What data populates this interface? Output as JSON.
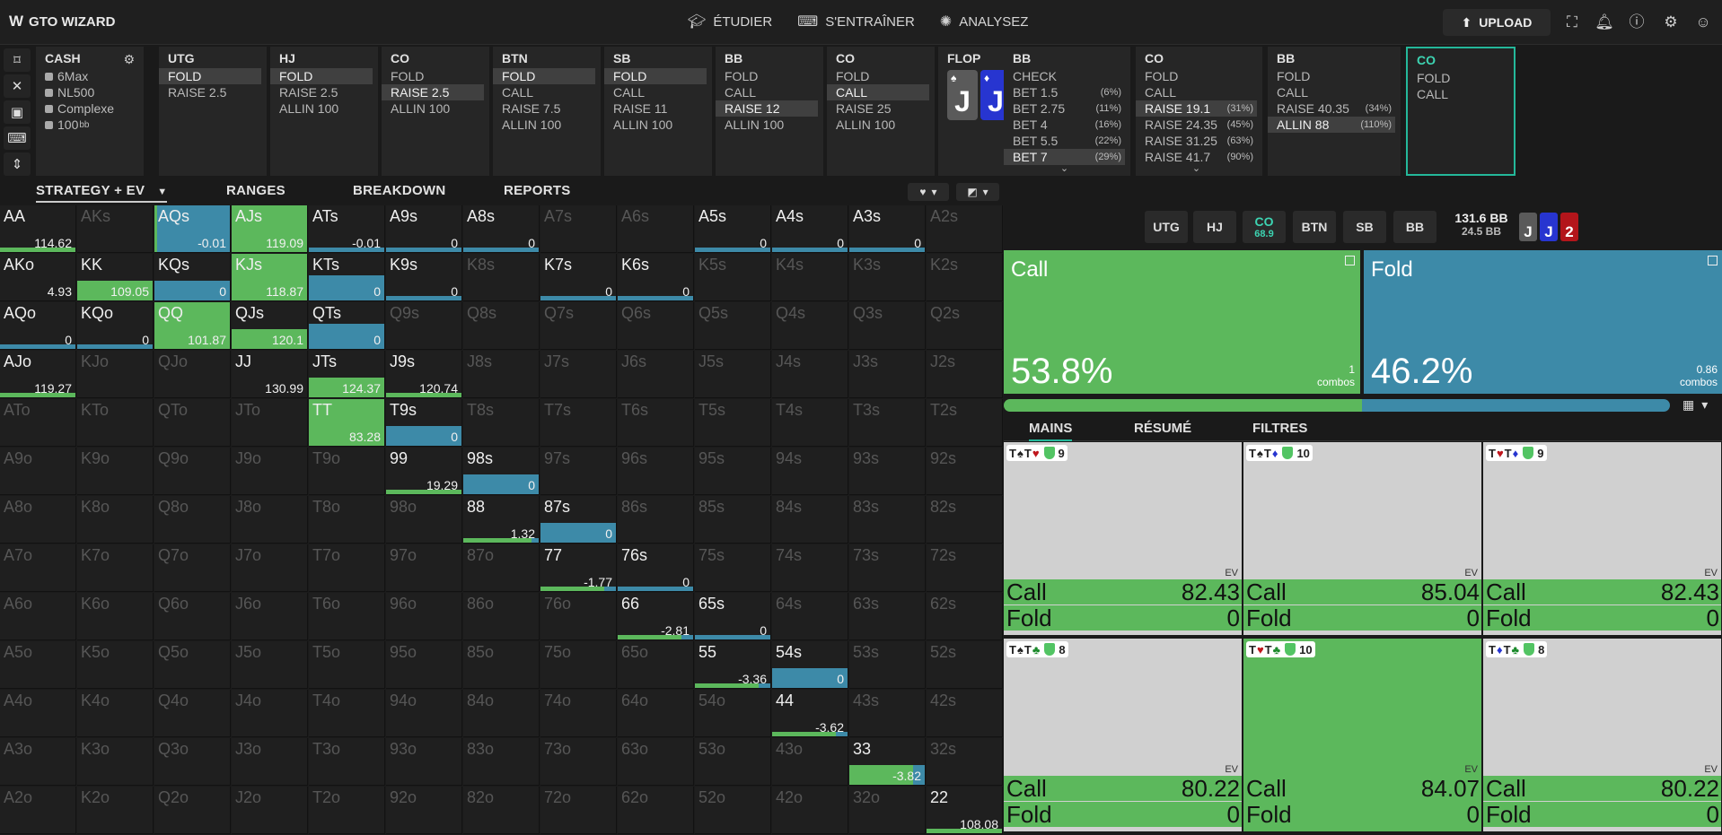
{
  "app": {
    "logo": "GTO WIZARD"
  },
  "nav": [
    {
      "label": "ÉTUDIER",
      "icon": "graduation-cap-icon"
    },
    {
      "label": "S'ENTRAÎNER",
      "icon": "gamepad-icon"
    },
    {
      "label": "ANALYSEZ",
      "icon": "lightbulb-icon"
    }
  ],
  "upload_label": "UPLOAD",
  "game": {
    "title": "CASH",
    "rows": [
      "6Max",
      "NL500",
      "Complexe",
      "100"
    ],
    "stack_unit": "bb"
  },
  "panels": [
    {
      "pos": "UTG",
      "opts": [
        "FOLD",
        "RAISE 2.5"
      ],
      "sel": 0
    },
    {
      "pos": "HJ",
      "opts": [
        "FOLD",
        "RAISE 2.5",
        "ALLIN 100"
      ],
      "sel": 0
    },
    {
      "pos": "CO",
      "opts": [
        "FOLD",
        "RAISE 2.5",
        "ALLIN 100"
      ],
      "sel": 1
    },
    {
      "pos": "BTN",
      "opts": [
        "FOLD",
        "CALL",
        "RAISE 7.5",
        "ALLIN 100"
      ],
      "sel": 0
    },
    {
      "pos": "SB",
      "opts": [
        "FOLD",
        "CALL",
        "RAISE 11",
        "ALLIN 100"
      ],
      "sel": 0
    },
    {
      "pos": "BB",
      "opts": [
        "FOLD",
        "CALL",
        "RAISE 12",
        "ALLIN 100"
      ],
      "sel": 2
    },
    {
      "pos": "CO",
      "opts": [
        "FOLD",
        "CALL",
        "RAISE 25",
        "ALLIN 100"
      ],
      "sel": 1
    }
  ],
  "flop": {
    "label": "FLOP",
    "pot": "24.5",
    "cards": [
      {
        "rank": "J",
        "suit": "♠",
        "color": "#5a5a5a"
      },
      {
        "rank": "J",
        "suit": "♦",
        "color": "#2735d0"
      },
      {
        "rank": "2",
        "suit": "♥",
        "color": "#b3151b"
      }
    ]
  },
  "postflop_panels": [
    {
      "pos": "BB",
      "opts": [
        {
          "l": "CHECK",
          "p": ""
        },
        {
          "l": "BET 1.5",
          "p": "(6%)"
        },
        {
          "l": "BET 2.75",
          "p": "(11%)"
        },
        {
          "l": "BET 4",
          "p": "(16%)"
        },
        {
          "l": "BET 5.5",
          "p": "(22%)"
        },
        {
          "l": "BET 7",
          "p": "(29%)"
        }
      ],
      "sel": 5,
      "more": true
    },
    {
      "pos": "CO",
      "opts": [
        {
          "l": "FOLD",
          "p": ""
        },
        {
          "l": "CALL",
          "p": ""
        },
        {
          "l": "RAISE 19.1",
          "p": "(31%)"
        },
        {
          "l": "RAISE 24.35",
          "p": "(45%)"
        },
        {
          "l": "RAISE 31.25",
          "p": "(63%)"
        },
        {
          "l": "RAISE 41.7",
          "p": "(90%)"
        }
      ],
      "sel": 2,
      "more": true
    },
    {
      "pos": "BB",
      "opts": [
        {
          "l": "FOLD",
          "p": ""
        },
        {
          "l": "CALL",
          "p": ""
        },
        {
          "l": "RAISE 40.35",
          "p": "(34%)"
        },
        {
          "l": "ALLIN 88",
          "p": "(110%)"
        }
      ],
      "sel": 3,
      "more": false
    },
    {
      "pos": "CO",
      "opts": [
        {
          "l": "FOLD",
          "p": ""
        },
        {
          "l": "CALL",
          "p": ""
        }
      ],
      "sel": -1,
      "more": false
    }
  ],
  "tabs": [
    "STRATEGY + EV",
    "RANGES",
    "BREAKDOWN",
    "REPORTS"
  ],
  "matrix": {
    "ranks": [
      "A",
      "K",
      "Q",
      "J",
      "T",
      "9",
      "8",
      "7",
      "6",
      "5",
      "4",
      "3",
      "2"
    ],
    "colors": {
      "call": "#5cb85c",
      "fold": "#3d8aa8"
    },
    "cells": {
      "AA": {
        "ev": "114.62",
        "call": 0,
        "fold": 0,
        "bar": [
          1,
          0
        ]
      },
      "AQs": {
        "ev": "-0.01",
        "call": 0.04,
        "fold": 0.96
      },
      "AJs": {
        "ev": "119.09",
        "call": 1,
        "fold": 0
      },
      "ATs": {
        "ev": "-0.01",
        "call": 0,
        "fold": 0,
        "bar": [
          0,
          1
        ]
      },
      "A9s": {
        "ev": "0",
        "call": 0,
        "fold": 0,
        "bar": [
          0,
          1
        ]
      },
      "A8s": {
        "ev": "0",
        "call": 0,
        "fold": 0,
        "bar": [
          0,
          1
        ]
      },
      "A5s": {
        "ev": "0",
        "call": 0,
        "fold": 0,
        "bar": [
          0,
          1
        ]
      },
      "A4s": {
        "ev": "0",
        "call": 0,
        "fold": 0,
        "bar": [
          0,
          1
        ]
      },
      "A3s": {
        "ev": "0",
        "call": 0,
        "fold": 0,
        "bar": [
          0,
          1
        ]
      },
      "AKo": {
        "ev": "4.93",
        "call": 0,
        "fold": 0
      },
      "KK": {
        "ev": "109.05",
        "call": 0,
        "fold": 0,
        "bar": [
          1,
          0
        ],
        "tall": true
      },
      "KQs": {
        "ev": "0",
        "call": 0,
        "fold": 0,
        "bar": [
          0,
          1
        ],
        "tall": true
      },
      "KJs": {
        "ev": "118.87",
        "call": 1,
        "fold": 0
      },
      "KTs": {
        "ev": "0",
        "call": 0,
        "fold": 1
      },
      "K9s": {
        "ev": "0",
        "call": 0,
        "fold": 0,
        "bar": [
          0,
          1
        ]
      },
      "K7s": {
        "ev": "0",
        "call": 0,
        "fold": 0,
        "bar": [
          0,
          1
        ]
      },
      "K6s": {
        "ev": "0",
        "call": 0,
        "fold": 0,
        "bar": [
          0,
          1
        ]
      },
      "AQo": {
        "ev": "0",
        "call": 0,
        "fold": 0,
        "bar": [
          0,
          1
        ]
      },
      "KQo": {
        "ev": "0",
        "call": 0,
        "fold": 0,
        "bar": [
          0,
          1
        ]
      },
      "QQ": {
        "ev": "101.87",
        "call": 1,
        "fold": 0
      },
      "QJs": {
        "ev": "120.1",
        "call": 0,
        "fold": 0,
        "bar": [
          1,
          0
        ],
        "tall": true
      },
      "QTs": {
        "ev": "0",
        "call": 0,
        "fold": 1
      },
      "AJo": {
        "ev": "119.27",
        "call": 0,
        "fold": 0,
        "bar": [
          1,
          0
        ]
      },
      "JJ": {
        "ev": "130.99",
        "call": 0,
        "fold": 0
      },
      "JTs": {
        "ev": "124.37",
        "call": 0,
        "fold": 0,
        "bar": [
          1,
          0
        ],
        "tall": true
      },
      "J9s": {
        "ev": "120.74",
        "call": 0,
        "fold": 0,
        "bar": [
          1,
          0
        ]
      },
      "TT": {
        "ev": "83.28",
        "call": 1,
        "fold": 0
      },
      "T9s": {
        "ev": "0",
        "call": 0,
        "fold": 0,
        "bar": [
          0,
          1
        ],
        "tall": true
      },
      "99": {
        "ev": "19.29",
        "call": 0,
        "fold": 0,
        "bar": [
          1,
          0
        ]
      },
      "98s": {
        "ev": "0",
        "call": 0,
        "fold": 0,
        "bar": [
          0,
          1
        ],
        "tall": true
      },
      "88": {
        "ev": "1.32",
        "call": 0,
        "fold": 0,
        "bar": [
          0.9,
          0.1
        ]
      },
      "87s": {
        "ev": "0",
        "call": 0,
        "fold": 0,
        "bar": [
          0,
          1
        ],
        "tall": true
      },
      "77": {
        "ev": "-1.77",
        "call": 0,
        "fold": 0,
        "bar": [
          0.85,
          0.15
        ]
      },
      "76s": {
        "ev": "0",
        "call": 0,
        "fold": 0,
        "bar": [
          0,
          1
        ]
      },
      "66": {
        "ev": "-2.81",
        "call": 0,
        "fold": 0,
        "bar": [
          0.85,
          0.15
        ]
      },
      "65s": {
        "ev": "0",
        "call": 0,
        "fold": 0,
        "bar": [
          0,
          1
        ]
      },
      "55": {
        "ev": "-3.36",
        "call": 0,
        "fold": 0,
        "bar": [
          0.85,
          0.15
        ]
      },
      "54s": {
        "ev": "0",
        "call": 0,
        "fold": 0,
        "bar": [
          0,
          1
        ],
        "tall": true
      },
      "44": {
        "ev": "-3.62",
        "call": 0,
        "fold": 0,
        "bar": [
          0.85,
          0.15
        ]
      },
      "33": {
        "ev": "-3.82",
        "call": 0,
        "fold": 0,
        "bar": [
          0.85,
          0.15
        ],
        "tall": true
      },
      "22": {
        "ev": "108.08",
        "call": 0,
        "fold": 0,
        "bar": [
          1,
          0
        ]
      }
    }
  },
  "positions": [
    {
      "label": "UTG",
      "sub": ""
    },
    {
      "label": "HJ",
      "sub": ""
    },
    {
      "label": "CO",
      "sub": "68.9"
    },
    {
      "label": "BTN",
      "sub": ""
    },
    {
      "label": "SB",
      "sub": ""
    },
    {
      "label": "BB",
      "sub": ""
    }
  ],
  "pot": {
    "main": "131.6 BB",
    "sub": "24.5 BB"
  },
  "summary": [
    {
      "action": "Call",
      "pct": "53.8%",
      "combos": "1",
      "combos_label": "combos",
      "color": "#5cb85c",
      "frac": 0.538
    },
    {
      "action": "Fold",
      "pct": "46.2%",
      "combos": "0.86",
      "combos_label": "combos",
      "color": "#3d8aa8",
      "frac": 0.462
    }
  ],
  "rtabs": [
    "MAINS",
    "RÉSUMÉ",
    "FILTRES"
  ],
  "combos": [
    {
      "c1": "T",
      "s1": "♠",
      "k1": "#222",
      "c2": "T",
      "s2": "♥",
      "k2": "#c0161c",
      "blk": "9",
      "call": "82.43",
      "fold": "0",
      "full": false
    },
    {
      "c1": "T",
      "s1": "♠",
      "k1": "#222",
      "c2": "T",
      "s2": "♦",
      "k2": "#2735d0",
      "blk": "10",
      "call": "85.04",
      "fold": "0",
      "full": false
    },
    {
      "c1": "T",
      "s1": "♥",
      "k1": "#c0161c",
      "c2": "T",
      "s2": "♦",
      "k2": "#2735d0",
      "blk": "9",
      "call": "82.43",
      "fold": "0",
      "full": false
    },
    {
      "c1": "T",
      "s1": "♠",
      "k1": "#222",
      "c2": "T",
      "s2": "♣",
      "k2": "#1c8a2c",
      "blk": "8",
      "call": "80.22",
      "fold": "0",
      "full": false
    },
    {
      "c1": "T",
      "s1": "♥",
      "k1": "#c0161c",
      "c2": "T",
      "s2": "♣",
      "k2": "#1c8a2c",
      "blk": "10",
      "call": "84.07",
      "fold": "0",
      "full": true
    },
    {
      "c1": "T",
      "s1": "♦",
      "k1": "#2735d0",
      "c2": "T",
      "s2": "♣",
      "k2": "#1c8a2c",
      "blk": "8",
      "call": "80.22",
      "fold": "0",
      "full": false
    }
  ],
  "labels": {
    "ev": "EV",
    "call": "Call",
    "fold": "Fold"
  }
}
